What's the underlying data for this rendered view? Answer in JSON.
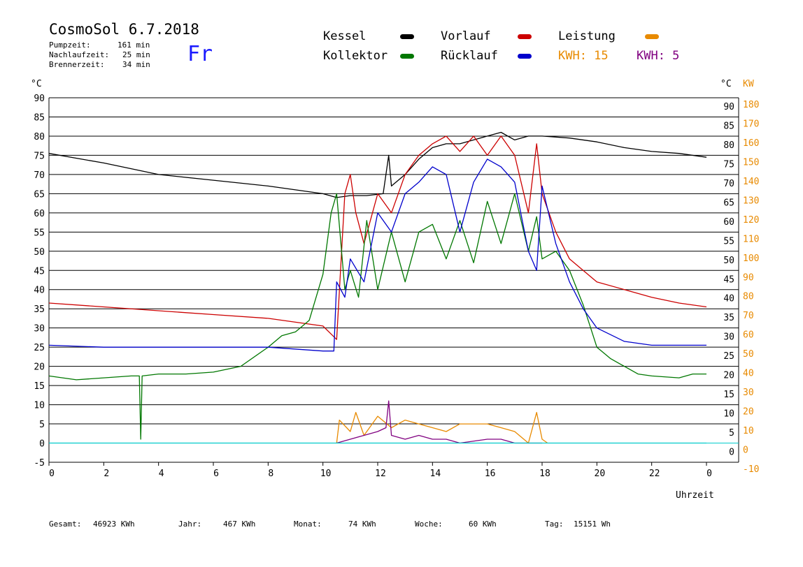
{
  "header": {
    "title": "CosmoSol 6.7.2018",
    "day": "Fr",
    "stats": [
      {
        "label": "Pumpzeit:",
        "value": "161 min"
      },
      {
        "label": "Nachlaufzeit:",
        "value": "25 min"
      },
      {
        "label": "Brennerzeit:",
        "value": "34 min"
      }
    ]
  },
  "legend": {
    "kessel": "Kessel",
    "vorlauf": "Vorlauf",
    "leistung": "Leistung",
    "kollektor": "Kollektor",
    "ruecklauf": "Rücklauf",
    "kwh1": "KWH: 15",
    "kwh2": "KWH: 5"
  },
  "footer": {
    "gesamt_label": "Gesamt:",
    "gesamt_value": "46923 KWh",
    "jahr_label": "Jahr:",
    "jahr_value": "467 KWh",
    "monat_label": "Monat:",
    "monat_value": "74 KWh",
    "woche_label": "Woche:",
    "woche_value": "60 KWh",
    "tag_label": "Tag:",
    "tag_value": "15151 Wh"
  },
  "colors": {
    "kessel": "#000000",
    "vorlauf": "#cc0000",
    "kollektor": "#007700",
    "ruecklauf": "#0000cc",
    "leistung": "#e88a00",
    "kwh2": "#800080",
    "pump": "#00cccc",
    "grid": "#000000"
  },
  "chart_data": {
    "type": "line",
    "xlabel": "Uhrzeit",
    "ylabel_left": "°C",
    "ylabel_right_1": "°C",
    "ylabel_right_2": "KW",
    "xlim": [
      0,
      24
    ],
    "ylim": [
      -5,
      90
    ],
    "ylim_kw": [
      -10,
      180
    ],
    "x_ticks": [
      "0",
      "2",
      "4",
      "6",
      "8",
      "10",
      "12",
      "14",
      "16",
      "18",
      "20",
      "22",
      "0"
    ],
    "y_ticks_left": [
      "90",
      "85",
      "80",
      "75",
      "70",
      "65",
      "60",
      "55",
      "50",
      "45",
      "40",
      "35",
      "30",
      "25",
      "20",
      "15",
      "10",
      "5",
      "0",
      "-5"
    ],
    "y_ticks_right": [
      "90",
      "85",
      "80",
      "75",
      "70",
      "65",
      "60",
      "55",
      "50",
      "45",
      "40",
      "35",
      "30",
      "25",
      "20",
      "15",
      "10",
      "5",
      "0"
    ],
    "y_ticks_kw": [
      "180",
      "170",
      "160",
      "150",
      "140",
      "130",
      "120",
      "110",
      "100",
      "90",
      "80",
      "70",
      "60",
      "50",
      "40",
      "30",
      "20",
      "10",
      "0",
      "-10"
    ],
    "grid": true,
    "legend_position": "top",
    "series": [
      {
        "name": "Kessel",
        "color": "#000000",
        "x": [
          0,
          2,
          4,
          6,
          8,
          10,
          10.5,
          11,
          11.6,
          12.2,
          12.4,
          12.5,
          13,
          13.5,
          14,
          14.5,
          15,
          16,
          16.5,
          17,
          17.5,
          18,
          19,
          20,
          21,
          22,
          23,
          24
        ],
        "y": [
          75.5,
          73,
          70,
          68.5,
          67,
          65,
          64,
          64.5,
          64.5,
          65,
          75,
          67,
          70,
          74,
          77,
          78,
          78,
          80,
          81,
          79,
          80,
          80,
          79.5,
          78.5,
          77,
          76,
          75.5,
          74.5
        ]
      },
      {
        "name": "Vorlauf",
        "color": "#cc0000",
        "x": [
          0,
          2,
          4,
          6,
          8,
          9,
          10,
          10.5,
          10.8,
          11,
          11.2,
          11.5,
          12,
          12.5,
          13,
          13.5,
          14,
          14.5,
          15,
          15.5,
          16,
          16.5,
          17,
          17.5,
          17.8,
          18,
          18.5,
          19,
          20,
          21,
          22,
          23,
          24
        ],
        "y": [
          36.5,
          35.5,
          34.5,
          33.5,
          32.5,
          31.5,
          30.5,
          27,
          65,
          70,
          60,
          52,
          65,
          60,
          70,
          75,
          78,
          80,
          76,
          80,
          75,
          80,
          75,
          60,
          78,
          65,
          55,
          48,
          42,
          40,
          38,
          36.5,
          35.5
        ]
      },
      {
        "name": "Kollektor",
        "color": "#007700",
        "x": [
          0,
          1,
          2,
          3,
          3.3,
          3.35,
          3.4,
          4,
          5,
          6,
          7,
          8,
          8.5,
          9,
          9.5,
          10,
          10.3,
          10.5,
          10.8,
          11,
          11.3,
          11.6,
          12,
          12.5,
          13,
          13.5,
          14,
          14.5,
          15,
          15.5,
          16,
          16.5,
          17,
          17.5,
          17.8,
          18,
          18.5,
          19,
          19.5,
          20,
          20.5,
          21,
          21.5,
          22,
          23,
          23.5,
          24
        ],
        "y": [
          17.5,
          16.5,
          17,
          17.5,
          17.5,
          1,
          17.5,
          18,
          18,
          18.5,
          20,
          25,
          28,
          29,
          32,
          44,
          60,
          65,
          40,
          45,
          38,
          58,
          40,
          55,
          42,
          55,
          57,
          48,
          58,
          47,
          63,
          52,
          65,
          50,
          59,
          48,
          50,
          45,
          36,
          25,
          22,
          20,
          18,
          17.5,
          17,
          18,
          18
        ]
      },
      {
        "name": "Rücklauf",
        "color": "#0000cc",
        "x": [
          0,
          2,
          4,
          6,
          8,
          10,
          10.4,
          10.5,
          10.8,
          11,
          11.5,
          12,
          12.5,
          13,
          13.5,
          14,
          14.5,
          15,
          15.5,
          16,
          16.5,
          17,
          17.5,
          17.8,
          18,
          18.5,
          19,
          19.5,
          20,
          21,
          22,
          23,
          24
        ],
        "y": [
          25.5,
          25,
          25,
          25,
          25,
          24,
          24,
          42,
          38,
          48,
          42,
          60,
          55,
          65,
          68,
          72,
          70,
          55,
          68,
          74,
          72,
          68,
          50,
          45,
          67,
          52,
          42,
          35,
          30,
          26.5,
          25.5,
          25.5,
          25.5
        ]
      },
      {
        "name": "Leistung",
        "color": "#e88a00",
        "x": [
          10.5,
          10.6,
          11,
          11.2,
          11.5,
          12,
          12.5,
          13,
          13.5,
          14,
          14.5,
          15,
          16,
          16.5,
          17,
          17.5,
          17.8,
          18,
          18.2
        ],
        "y": [
          0,
          6,
          3,
          8,
          2,
          7,
          4,
          6,
          5,
          4,
          3,
          5,
          5,
          4,
          3,
          0,
          8,
          1,
          0
        ]
      },
      {
        "name": "KWH 5",
        "color": "#800080",
        "x": [
          10.5,
          11,
          11.5,
          12,
          12.3,
          12.4,
          12.5,
          13,
          13.5,
          14,
          14.5,
          15,
          16,
          16.5,
          17,
          17.5,
          18
        ],
        "y": [
          0,
          1,
          2,
          3,
          4,
          11,
          2,
          1,
          2,
          1,
          1,
          0,
          1,
          1,
          0,
          0,
          0
        ]
      },
      {
        "name": "Pumpe",
        "color": "#00cccc",
        "x": [
          0,
          24
        ],
        "y": [
          0,
          0
        ]
      }
    ]
  }
}
